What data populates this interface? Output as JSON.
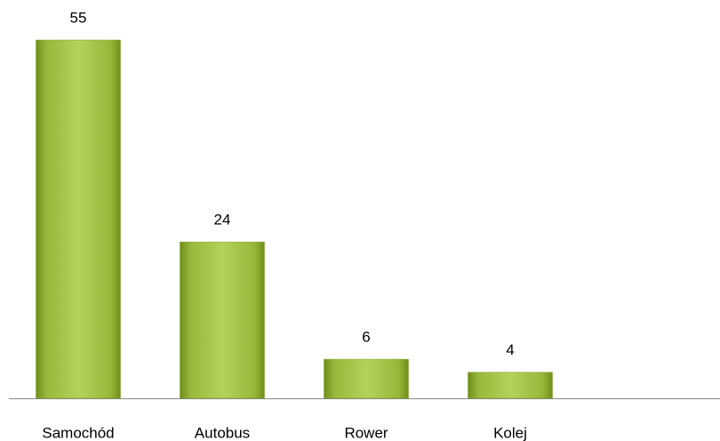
{
  "chart_data": {
    "type": "bar",
    "categories": [
      "Samochód",
      "Autobus",
      "Rower",
      "Kolej"
    ],
    "values": [
      55,
      24,
      6,
      4
    ],
    "color": "#9bbb3b"
  }
}
